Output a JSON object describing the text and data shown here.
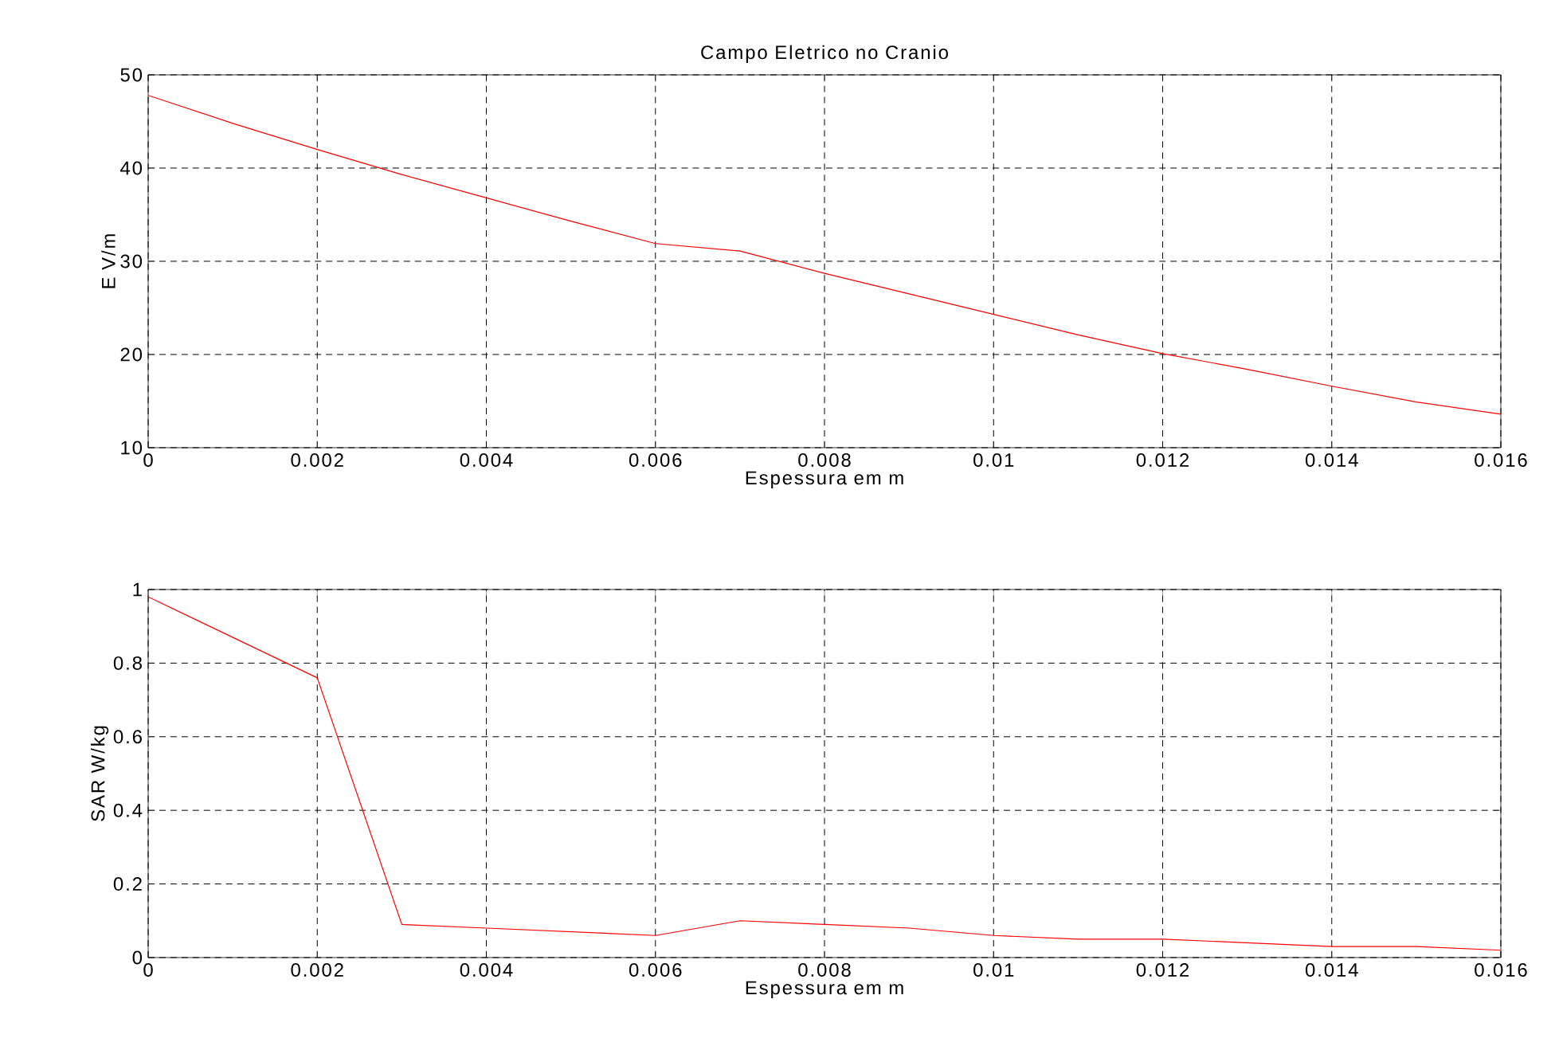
{
  "chart_data": [
    {
      "type": "line",
      "title": "Campo Eletrico no Cranio",
      "xlabel": "Espessura em m",
      "ylabel": "E V/m",
      "x": [
        0,
        0.001,
        0.002,
        0.003,
        0.004,
        0.005,
        0.006,
        0.007,
        0.008,
        0.009,
        0.01,
        0.011,
        0.012,
        0.013,
        0.014,
        0.015,
        0.016
      ],
      "series": [
        {
          "color": "#ff0000",
          "values": [
            47.8,
            44.8,
            42.0,
            39.3,
            36.8,
            34.3,
            31.9,
            31.1,
            28.7,
            26.5,
            24.3,
            22.1,
            20.1,
            18.4,
            16.6,
            14.9,
            13.6
          ]
        }
      ],
      "xlim": [
        0,
        0.016
      ],
      "xticks": [
        0,
        0.002,
        0.004,
        0.006,
        0.008,
        0.01,
        0.012,
        0.014,
        0.016
      ],
      "ylim": [
        10,
        50
      ],
      "yticks": [
        10,
        20,
        30,
        40,
        50
      ],
      "grid": true,
      "line_style": "solid"
    },
    {
      "type": "line",
      "xlabel": "Espessura em m",
      "ylabel": "SAR W/kg",
      "x": [
        0,
        0.001,
        0.002,
        0.003,
        0.004,
        0.005,
        0.006,
        0.007,
        0.008,
        0.009,
        0.01,
        0.011,
        0.012,
        0.013,
        0.014,
        0.015,
        0.016
      ],
      "series": [
        {
          "color": "#ff0000",
          "values": [
            0.98,
            0.87,
            0.76,
            0.09,
            0.08,
            0.07,
            0.06,
            0.1,
            0.09,
            0.08,
            0.06,
            0.05,
            0.05,
            0.04,
            0.03,
            0.03,
            0.02
          ]
        }
      ],
      "xlim": [
        0,
        0.016
      ],
      "xticks": [
        0,
        0.002,
        0.004,
        0.006,
        0.008,
        0.01,
        0.012,
        0.014,
        0.016
      ],
      "ylim": [
        0,
        1
      ],
      "yticks": [
        0,
        0.2,
        0.4,
        0.6,
        0.8,
        1
      ],
      "grid": true,
      "line_style": "solid"
    }
  ]
}
